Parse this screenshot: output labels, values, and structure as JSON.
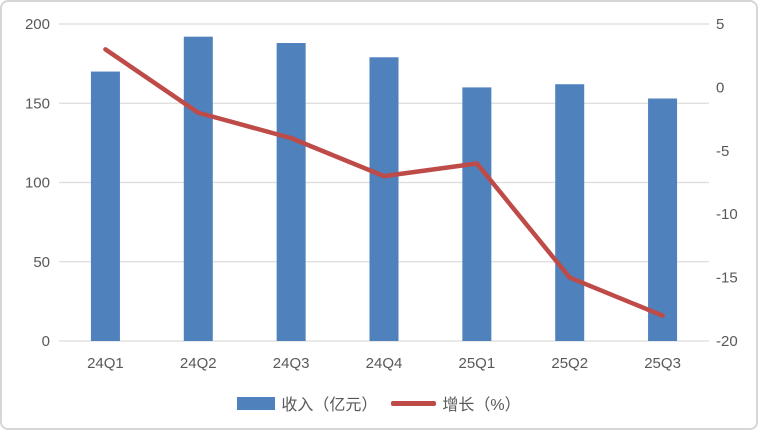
{
  "chart_data": {
    "type": "bar",
    "subtype": "combo-bar-line",
    "title": "",
    "categories": [
      "24Q1",
      "24Q2",
      "24Q3",
      "24Q4",
      "25Q1",
      "25Q2",
      "25Q3"
    ],
    "series": [
      {
        "name": "收入（亿元）",
        "type": "bar",
        "axis": "left",
        "values": [
          170,
          192,
          188,
          179,
          160,
          162,
          153
        ],
        "color": "#4f81bd"
      },
      {
        "name": "增长（%）",
        "type": "line",
        "axis": "right",
        "values": [
          3,
          -2,
          -4,
          -7,
          -6,
          -15,
          -18
        ],
        "color": "#be4b48"
      }
    ],
    "left_axis": {
      "min": 0,
      "max": 200,
      "ticks": [
        0,
        50,
        100,
        150,
        200
      ]
    },
    "right_axis": {
      "min": -20,
      "max": 5,
      "ticks": [
        5,
        0,
        -5,
        -10,
        -15,
        -20
      ]
    },
    "grid": true,
    "legend_position": "bottom",
    "xlabel": "",
    "ylabel": ""
  },
  "style": {
    "grid_color": "#dcdcdc",
    "tick_label_color": "#595959",
    "frame_border_color": "#d6d6d6",
    "background": "#ffffff"
  }
}
